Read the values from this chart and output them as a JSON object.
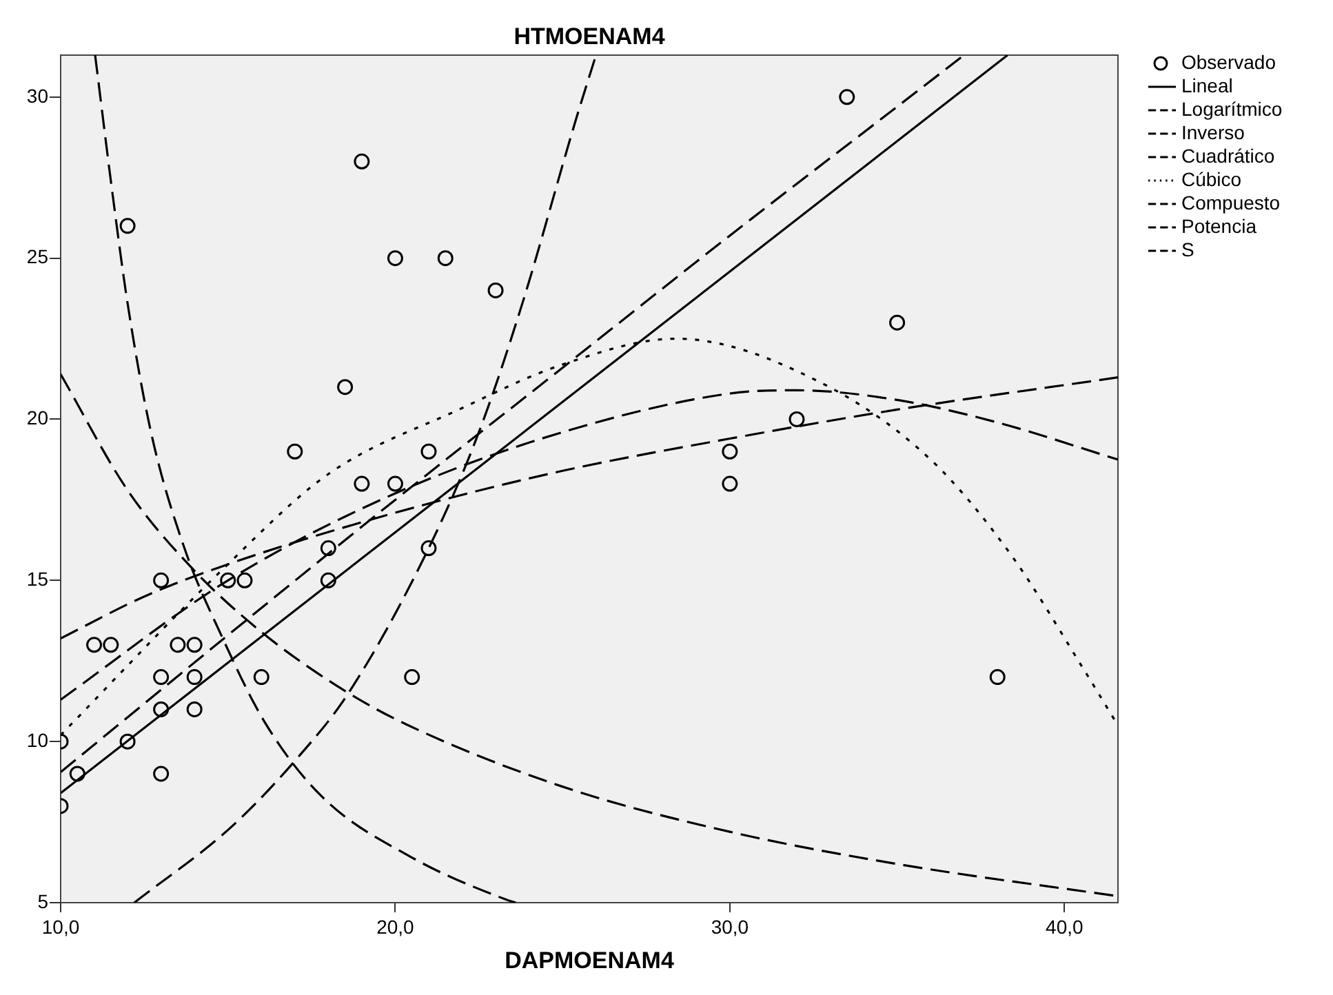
{
  "chart_data": {
    "type": "scatter",
    "title": "HTMOENAM4",
    "xlabel": "DAPMOENAM4",
    "xlim": [
      10,
      41.6
    ],
    "ylim": [
      5,
      31.3
    ],
    "xticks": [
      {
        "value": 10,
        "label": "10,0"
      },
      {
        "value": 20,
        "label": "20,0"
      },
      {
        "value": 30,
        "label": "30,0"
      },
      {
        "value": 40,
        "label": "40,0"
      }
    ],
    "yticks": [
      5,
      10,
      15,
      20,
      25,
      30
    ],
    "grid": false,
    "legend": "right",
    "series": [
      {
        "name": "Observado",
        "type": "scatter",
        "marker": "circle",
        "color": "#000000",
        "x": [
          19,
          12,
          20,
          21.5,
          23,
          18.5,
          17,
          21,
          19,
          20,
          33.5,
          35,
          32,
          30,
          30,
          38,
          21,
          18,
          18,
          13,
          15,
          15.5,
          11,
          11.5,
          13.5,
          14,
          13,
          14,
          16,
          20.5,
          13,
          14,
          12,
          10,
          10.5,
          13,
          10
        ],
        "values": [
          28,
          26,
          25,
          25,
          24,
          21,
          19,
          19,
          18,
          18,
          30,
          23,
          20,
          19,
          18,
          12,
          16,
          16,
          15,
          15,
          15,
          15,
          13,
          13,
          13,
          13,
          12,
          12,
          12,
          12,
          11,
          11,
          10,
          10,
          9,
          9,
          8
        ]
      },
      {
        "name": "Lineal",
        "type": "line",
        "line_style": "solid",
        "color": "#000000",
        "x": [
          10,
          38.3
        ],
        "values": [
          8.4,
          31.3
        ]
      },
      {
        "name": "Logarítmico",
        "type": "line",
        "line_style": "dashed",
        "color": "#000000",
        "x": [
          10,
          12.5,
          15,
          20,
          25,
          30,
          35,
          41.6
        ],
        "values": [
          13.2,
          14.5,
          15.5,
          17.1,
          18.4,
          19.4,
          20.3,
          21.3
        ]
      },
      {
        "name": "Inverso",
        "type": "line",
        "line_style": "dashed",
        "color": "#000000",
        "x": [
          10,
          12,
          14,
          16,
          18,
          20,
          25,
          30,
          35,
          41.6
        ],
        "values": [
          21.4,
          17.8,
          15.3,
          13.4,
          11.9,
          10.7,
          8.6,
          7.2,
          6.2,
          5.2
        ]
      },
      {
        "name": "Cuadrático",
        "type": "line",
        "line_style": "dashed",
        "color": "#000000",
        "x": [
          10,
          15,
          20,
          25,
          30,
          32,
          35,
          38,
          41.6
        ],
        "values": [
          11.3,
          15,
          17.7,
          19.6,
          20.8,
          20.9,
          20.6,
          19.9,
          18.75
        ]
      },
      {
        "name": "Cúbico",
        "type": "line",
        "line_style": "dotted",
        "color": "#000000",
        "x": [
          10,
          14.8,
          18,
          21.9,
          25,
          28.4,
          32.6,
          36,
          38.4,
          40.6,
          41.6
        ],
        "values": [
          10.2,
          15.3,
          18.3,
          20.3,
          21.7,
          22.5,
          21.2,
          18.75,
          15.8,
          12.2,
          10.5
        ]
      },
      {
        "name": "Compuesto",
        "type": "line",
        "line_style": "dashed",
        "color": "#000000",
        "x": [
          12.2,
          15.1,
          17,
          18.6,
          21,
          22.5,
          23.8,
          25.4,
          26
        ],
        "values": [
          5,
          7.35,
          9.4,
          11.5,
          16,
          19.6,
          23.6,
          29.3,
          31.3
        ]
      },
      {
        "name": "Potencia",
        "type": "line",
        "line_style": "dashed",
        "color": "#000000",
        "x": [
          10,
          15,
          20,
          25,
          30,
          35,
          37
        ],
        "values": [
          9.05,
          13.3,
          17.5,
          21.6,
          25.7,
          29.7,
          31.3
        ]
      },
      {
        "name": "S",
        "type": "line",
        "line_style": "dashed",
        "color": "#000000",
        "x": [
          11.03,
          11.55,
          12,
          12.7,
          13.7,
          14.8,
          16.1,
          17.8,
          20.5,
          23.3,
          23.6
        ],
        "values": [
          31.3,
          27,
          23.6,
          19.6,
          16,
          13.3,
          10.6,
          8.3,
          6.4,
          5.1,
          5
        ]
      }
    ]
  }
}
